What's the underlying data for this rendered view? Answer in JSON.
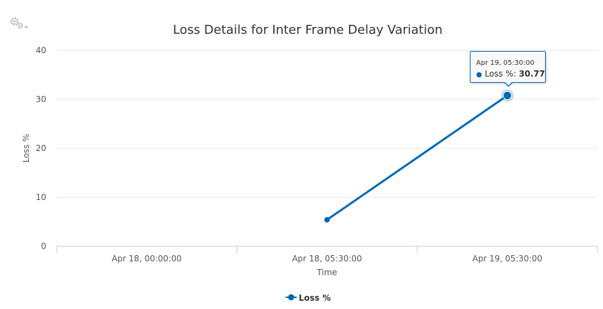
{
  "menu": {
    "icon": "gears-icon",
    "dropdown_icon": "caret-down-icon"
  },
  "chart_data": {
    "type": "line",
    "title": "Loss Details for Inter Frame Delay Variation",
    "xlabel": "Time",
    "ylabel": "Loss %",
    "ylim": [
      0,
      40
    ],
    "yticks": [
      0,
      10,
      20,
      30,
      40
    ],
    "categories": [
      "Apr 18, 00:00:00",
      "Apr 18, 05:30:00",
      "Apr 19, 05:30:00"
    ],
    "series": [
      {
        "name": "Loss %",
        "color": "#0068b3",
        "values": [
          null,
          5.4,
          30.77
        ]
      }
    ],
    "grid": true,
    "legend": "bottom-center",
    "tooltip": {
      "time": "Apr 19, 05:30:00",
      "label": "Loss %: ",
      "value": "30.77",
      "point_index": 2
    }
  }
}
